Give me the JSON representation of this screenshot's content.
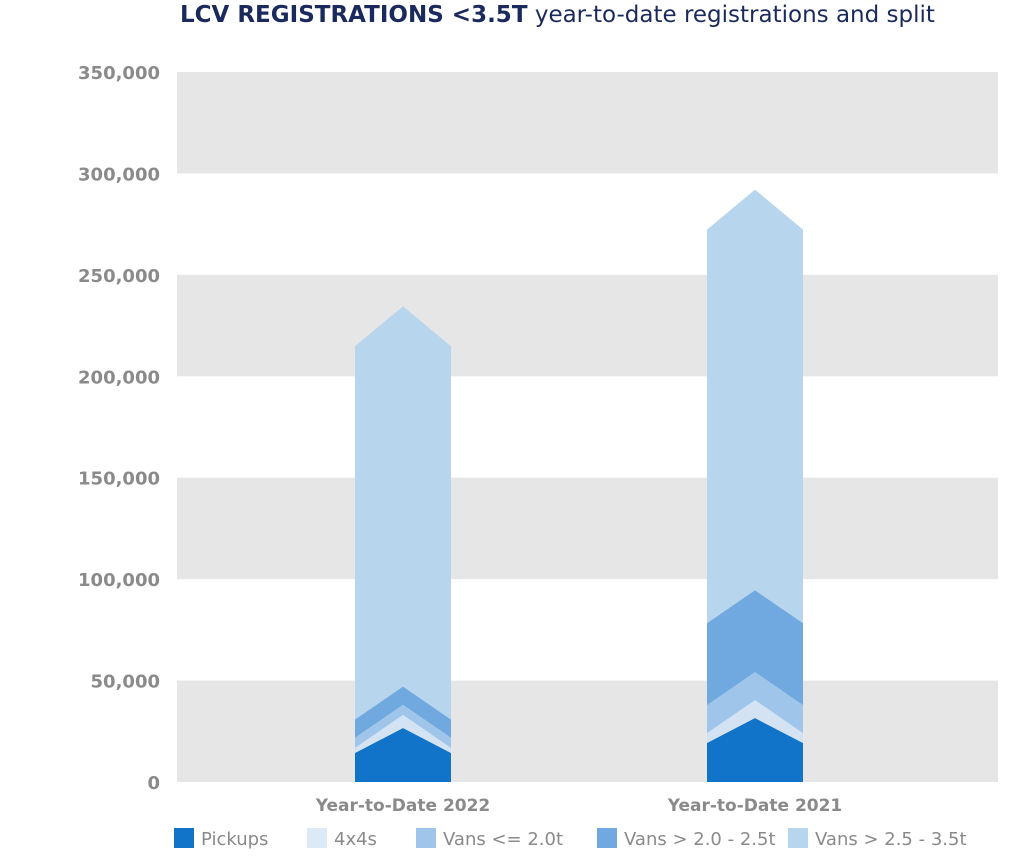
{
  "chart_data": {
    "type": "bar",
    "stacked": true,
    "title": "LCV REGISTRATIONS <3.5T",
    "subtitle": "year-to-date registrations and split",
    "xlabel": "",
    "ylabel": "",
    "ylim": [
      0,
      350000
    ],
    "yticks": [
      "0",
      "50,000",
      "100,000",
      "150,000",
      "200,000",
      "250,000",
      "300,000",
      "350,000"
    ],
    "ytick_values": [
      0,
      50000,
      100000,
      150000,
      200000,
      250000,
      300000,
      350000
    ],
    "categories": [
      "Year-to-Date 2022",
      "Year-to-Date 2021"
    ],
    "series": [
      {
        "name": "Pickups",
        "values": [
          14300,
          19200
        ],
        "color": "#1274c8"
      },
      {
        "name": "4x4s",
        "values": [
          2500,
          4900
        ],
        "color": "#d3e3f4"
      },
      {
        "name": "Vans <= 2.0t",
        "values": [
          5000,
          13800
        ],
        "color": "#9fc6ea"
      },
      {
        "name": "Vans > 2.0 - 2.5t",
        "values": [
          9000,
          40400
        ],
        "color": "#6fa9df"
      },
      {
        "name": "Vans > 2.5 - 3.5t",
        "values": [
          184000,
          194000
        ],
        "color": "#b8d5ee"
      }
    ],
    "grid": "alternating bands",
    "legend": "bottom"
  }
}
